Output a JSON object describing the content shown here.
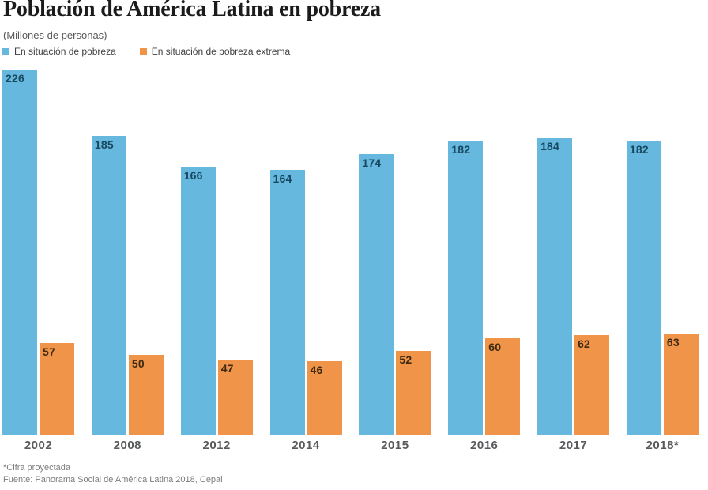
{
  "chart_data": {
    "type": "bar",
    "title": "Población de América Latina en pobreza",
    "subtitle": "(Millones de personas)",
    "categories": [
      "2002",
      "2008",
      "2012",
      "2014",
      "2015",
      "2016",
      "2017",
      "2018*"
    ],
    "series": [
      {
        "name": "En situación de pobreza",
        "color": "#67b8df",
        "label_color": "#17485f",
        "values": [
          226,
          185,
          166,
          164,
          174,
          182,
          184,
          182
        ]
      },
      {
        "name": "En situación de pobreza extrema",
        "color": "#ef9449",
        "label_color": "#3f2a10",
        "values": [
          57,
          50,
          47,
          46,
          52,
          60,
          62,
          63
        ]
      }
    ],
    "ylim": [
      0,
      226
    ],
    "grid": false,
    "legend_position": "top-left",
    "value_labels": "inside-top-left",
    "footnote": "*Cifra proyectada",
    "source": "Fuente: Panorama Social de América Latina 2018, Cepal"
  }
}
